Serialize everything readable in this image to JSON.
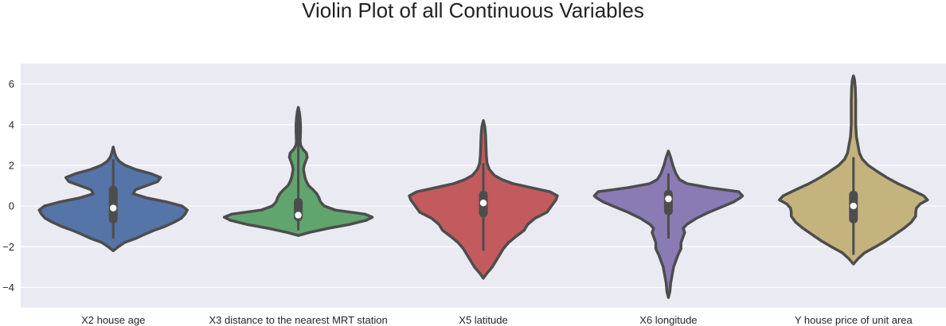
{
  "chart_data": {
    "type": "violin",
    "title": "Violin Plot of all Continuous Variables",
    "xlabel": "",
    "ylabel": "",
    "ylim": [
      -5.0,
      7.0
    ],
    "yticks": [
      -4,
      -2,
      0,
      2,
      4,
      6
    ],
    "ytick_labels": [
      "−4",
      "−2",
      "0",
      "2",
      "4",
      "6"
    ],
    "grid": true,
    "background_color": "#eaeaf2",
    "outline_color": "#4d4d4d",
    "categories": [
      "X2 house age",
      "X3 distance to the nearest MRT station",
      "X5 latitude",
      "X6 longitude",
      "Y house price of unit area"
    ],
    "violins": [
      {
        "color": "#5574a8",
        "min": -2.2,
        "max": 2.9,
        "q1": -0.85,
        "median": -0.1,
        "q3": 1.0,
        "whisker_low": -1.6,
        "whisker_high": 2.3,
        "density": [
          [
            -2.2,
            0.0
          ],
          [
            -2.0,
            0.07
          ],
          [
            -1.8,
            0.15
          ],
          [
            -1.6,
            0.3
          ],
          [
            -1.4,
            0.42
          ],
          [
            -1.2,
            0.55
          ],
          [
            -1.0,
            0.7
          ],
          [
            -0.8,
            0.82
          ],
          [
            -0.6,
            0.92
          ],
          [
            -0.4,
            0.97
          ],
          [
            -0.2,
            1.0
          ],
          [
            0.0,
            0.93
          ],
          [
            0.2,
            0.72
          ],
          [
            0.4,
            0.45
          ],
          [
            0.6,
            0.27
          ],
          [
            0.8,
            0.3
          ],
          [
            1.0,
            0.45
          ],
          [
            1.2,
            0.6
          ],
          [
            1.4,
            0.64
          ],
          [
            1.6,
            0.5
          ],
          [
            1.8,
            0.3
          ],
          [
            2.0,
            0.16
          ],
          [
            2.2,
            0.08
          ],
          [
            2.4,
            0.04
          ],
          [
            2.6,
            0.02
          ],
          [
            2.9,
            0.0
          ]
        ]
      },
      {
        "color": "#60a56e",
        "min": -1.45,
        "max": 4.85,
        "q1": -0.75,
        "median": -0.45,
        "q3": 0.4,
        "whisker_low": -1.2,
        "whisker_high": 4.5,
        "density": [
          [
            -1.45,
            0.0
          ],
          [
            -1.3,
            0.15
          ],
          [
            -1.1,
            0.4
          ],
          [
            -0.9,
            0.7
          ],
          [
            -0.7,
            0.92
          ],
          [
            -0.55,
            1.0
          ],
          [
            -0.4,
            0.9
          ],
          [
            -0.2,
            0.5
          ],
          [
            0.0,
            0.35
          ],
          [
            0.2,
            0.3
          ],
          [
            0.4,
            0.28
          ],
          [
            0.6,
            0.25
          ],
          [
            0.8,
            0.2
          ],
          [
            1.0,
            0.14
          ],
          [
            1.2,
            0.11
          ],
          [
            1.4,
            0.09
          ],
          [
            1.6,
            0.08
          ],
          [
            1.8,
            0.07
          ],
          [
            2.0,
            0.08
          ],
          [
            2.2,
            0.1
          ],
          [
            2.4,
            0.12
          ],
          [
            2.6,
            0.11
          ],
          [
            2.8,
            0.06
          ],
          [
            3.0,
            0.03
          ],
          [
            3.2,
            0.025
          ],
          [
            3.6,
            0.03
          ],
          [
            4.0,
            0.03
          ],
          [
            4.3,
            0.025
          ],
          [
            4.6,
            0.015
          ],
          [
            4.85,
            0.0
          ]
        ]
      },
      {
        "color": "#c25a5e",
        "min": -3.55,
        "max": 4.2,
        "q1": -0.55,
        "median": 0.15,
        "q3": 0.75,
        "whisker_low": -2.2,
        "whisker_high": 2.1,
        "density": [
          [
            -3.55,
            0.0
          ],
          [
            -3.3,
            0.05
          ],
          [
            -3.0,
            0.12
          ],
          [
            -2.7,
            0.17
          ],
          [
            -2.4,
            0.22
          ],
          [
            -2.1,
            0.27
          ],
          [
            -1.8,
            0.34
          ],
          [
            -1.5,
            0.44
          ],
          [
            -1.2,
            0.55
          ],
          [
            -0.9,
            0.6
          ],
          [
            -0.6,
            0.7
          ],
          [
            -0.3,
            0.86
          ],
          [
            0.0,
            0.92
          ],
          [
            0.3,
            0.98
          ],
          [
            0.5,
            1.0
          ],
          [
            0.7,
            0.9
          ],
          [
            0.9,
            0.65
          ],
          [
            1.1,
            0.4
          ],
          [
            1.3,
            0.25
          ],
          [
            1.5,
            0.15
          ],
          [
            1.8,
            0.08
          ],
          [
            2.1,
            0.05
          ],
          [
            2.5,
            0.04
          ],
          [
            3.0,
            0.035
          ],
          [
            3.5,
            0.03
          ],
          [
            3.9,
            0.02
          ],
          [
            4.2,
            0.0
          ]
        ]
      },
      {
        "color": "#8a7bb5",
        "min": -4.5,
        "max": 2.7,
        "q1": -0.45,
        "median": 0.35,
        "q3": 0.8,
        "whisker_low": -1.6,
        "whisker_high": 1.6,
        "density": [
          [
            -4.5,
            0.0
          ],
          [
            -4.2,
            0.02
          ],
          [
            -3.8,
            0.03
          ],
          [
            -3.4,
            0.05
          ],
          [
            -3.0,
            0.07
          ],
          [
            -2.7,
            0.1
          ],
          [
            -2.4,
            0.13
          ],
          [
            -2.1,
            0.17
          ],
          [
            -1.8,
            0.17
          ],
          [
            -1.5,
            0.2
          ],
          [
            -1.3,
            0.22
          ],
          [
            -1.1,
            0.2
          ],
          [
            -0.9,
            0.25
          ],
          [
            -0.6,
            0.38
          ],
          [
            -0.3,
            0.55
          ],
          [
            0.0,
            0.75
          ],
          [
            0.2,
            0.88
          ],
          [
            0.4,
            0.97
          ],
          [
            0.5,
            1.0
          ],
          [
            0.7,
            0.95
          ],
          [
            0.9,
            0.55
          ],
          [
            1.1,
            0.25
          ],
          [
            1.3,
            0.15
          ],
          [
            1.6,
            0.1
          ],
          [
            2.0,
            0.06
          ],
          [
            2.4,
            0.03
          ],
          [
            2.7,
            0.0
          ]
        ]
      },
      {
        "color": "#c5b37e",
        "min": -2.85,
        "max": 6.4,
        "q1": -0.85,
        "median": 0.0,
        "q3": 0.75,
        "whisker_low": -2.4,
        "whisker_high": 2.4,
        "density": [
          [
            -2.85,
            0.0
          ],
          [
            -2.6,
            0.06
          ],
          [
            -2.3,
            0.15
          ],
          [
            -2.0,
            0.3
          ],
          [
            -1.7,
            0.44
          ],
          [
            -1.4,
            0.56
          ],
          [
            -1.1,
            0.68
          ],
          [
            -0.8,
            0.78
          ],
          [
            -0.5,
            0.84
          ],
          [
            -0.3,
            0.84
          ],
          [
            -0.1,
            0.85
          ],
          [
            0.1,
            0.9
          ],
          [
            0.3,
            1.0
          ],
          [
            0.5,
            0.95
          ],
          [
            0.8,
            0.78
          ],
          [
            1.1,
            0.6
          ],
          [
            1.4,
            0.45
          ],
          [
            1.7,
            0.32
          ],
          [
            2.0,
            0.2
          ],
          [
            2.3,
            0.12
          ],
          [
            2.6,
            0.08
          ],
          [
            3.0,
            0.06
          ],
          [
            3.4,
            0.04
          ],
          [
            4.0,
            0.03
          ],
          [
            4.6,
            0.03
          ],
          [
            5.2,
            0.03
          ],
          [
            5.8,
            0.025
          ],
          [
            6.2,
            0.015
          ],
          [
            6.4,
            0.0
          ]
        ]
      }
    ]
  }
}
